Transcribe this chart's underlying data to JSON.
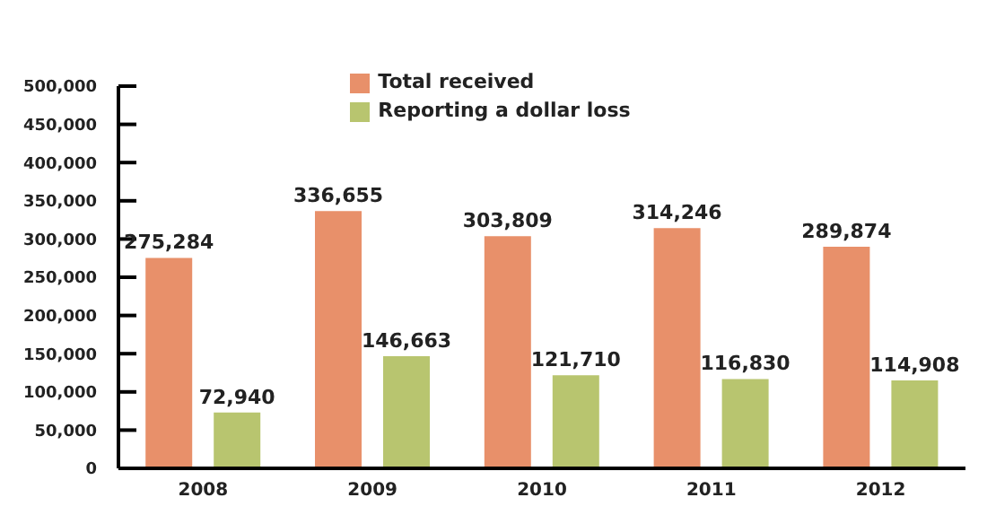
{
  "chart_data": {
    "type": "bar",
    "categories": [
      "2008",
      "2009",
      "2010",
      "2011",
      "2012"
    ],
    "series": [
      {
        "name": "Total received",
        "color": "#e8906a",
        "values": [
          275284,
          336655,
          303809,
          314246,
          289874
        ],
        "value_labels": [
          "275,284",
          "336,655",
          "303,809",
          "314,246",
          "289,874"
        ]
      },
      {
        "name": "Reporting a dollar loss",
        "color": "#b8c56f",
        "values": [
          72940,
          146663,
          121710,
          116830,
          114908
        ],
        "value_labels": [
          "72,940",
          "146,663",
          "121,710",
          "116,830",
          "114,908"
        ]
      }
    ],
    "ylim": [
      0,
      500000
    ],
    "yticks": [
      0,
      {
        "value": 50000,
        "label": "50,000"
      },
      {
        "value": 100000,
        "label": "100,000"
      },
      {
        "value": 150000,
        "label": "150,000"
      },
      {
        "value": 200000,
        "label": "200,000"
      },
      {
        "value": 250000,
        "label": "250,000"
      },
      {
        "value": 300000,
        "label": "300,000"
      },
      {
        "value": 350000,
        "label": "350,000"
      },
      {
        "value": 400000,
        "label": "400,000"
      },
      {
        "value": 450000,
        "label": "450,000"
      },
      {
        "value": 500000,
        "label": "500,000"
      }
    ],
    "grid": false,
    "legend": "top"
  }
}
